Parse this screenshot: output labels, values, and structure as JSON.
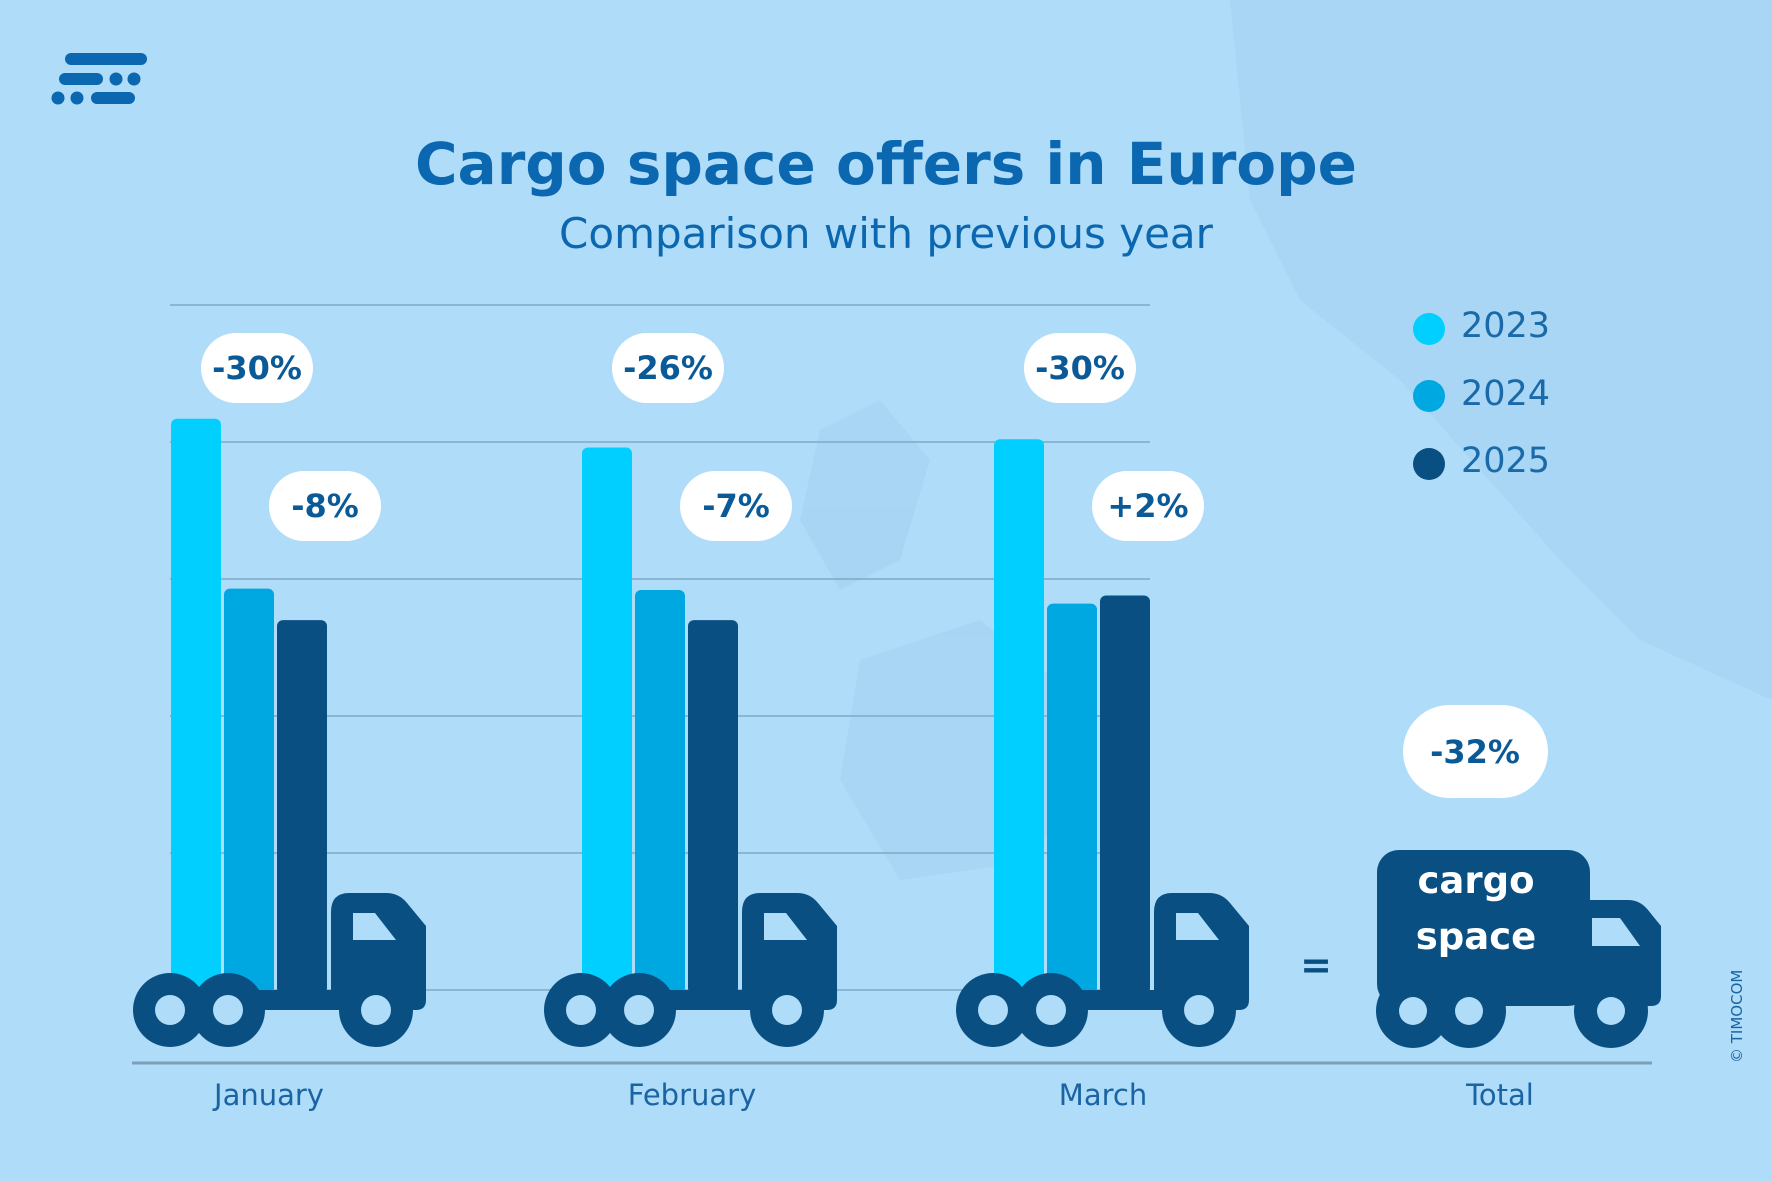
{
  "colors": {
    "background": "#afdcf8",
    "title": "#0a67b0",
    "2023": "#00cfff",
    "2024": "#00a8e2",
    "2025": "#0a4f82",
    "truck": "#0a4f82",
    "gridline": "#7fa9c6"
  },
  "logo": {
    "icon": "timocom-logo-icon"
  },
  "chart_data": {
    "type": "bar",
    "title": "Cargo space offers in Europe",
    "subtitle": "Comparison with previous year",
    "categories": [
      "January",
      "February",
      "March"
    ],
    "series": [
      {
        "name": "2023",
        "values": [
          4.17,
          3.96,
          4.02
        ]
      },
      {
        "name": "2024",
        "values": [
          2.93,
          2.92,
          2.82
        ]
      },
      {
        "name": "2025",
        "values": [
          2.7,
          2.7,
          2.88
        ]
      }
    ],
    "annotations": [
      {
        "category": "January",
        "vs_2023": "-30%",
        "vs_2024": "-8%"
      },
      {
        "category": "February",
        "vs_2023": "-26%",
        "vs_2024": "-7%"
      },
      {
        "category": "March",
        "vs_2023": "-30%",
        "vs_2024": "+2%"
      }
    ],
    "total": {
      "label": "Total",
      "change": "-32%",
      "equals": "=",
      "truck_line1": "cargo",
      "truck_line2": "space"
    },
    "ylim": [
      0,
      5
    ],
    "grid": true,
    "legend_position": "top-right",
    "xlabel": "",
    "ylabel": ""
  },
  "copyright": "© TIMOCOM"
}
